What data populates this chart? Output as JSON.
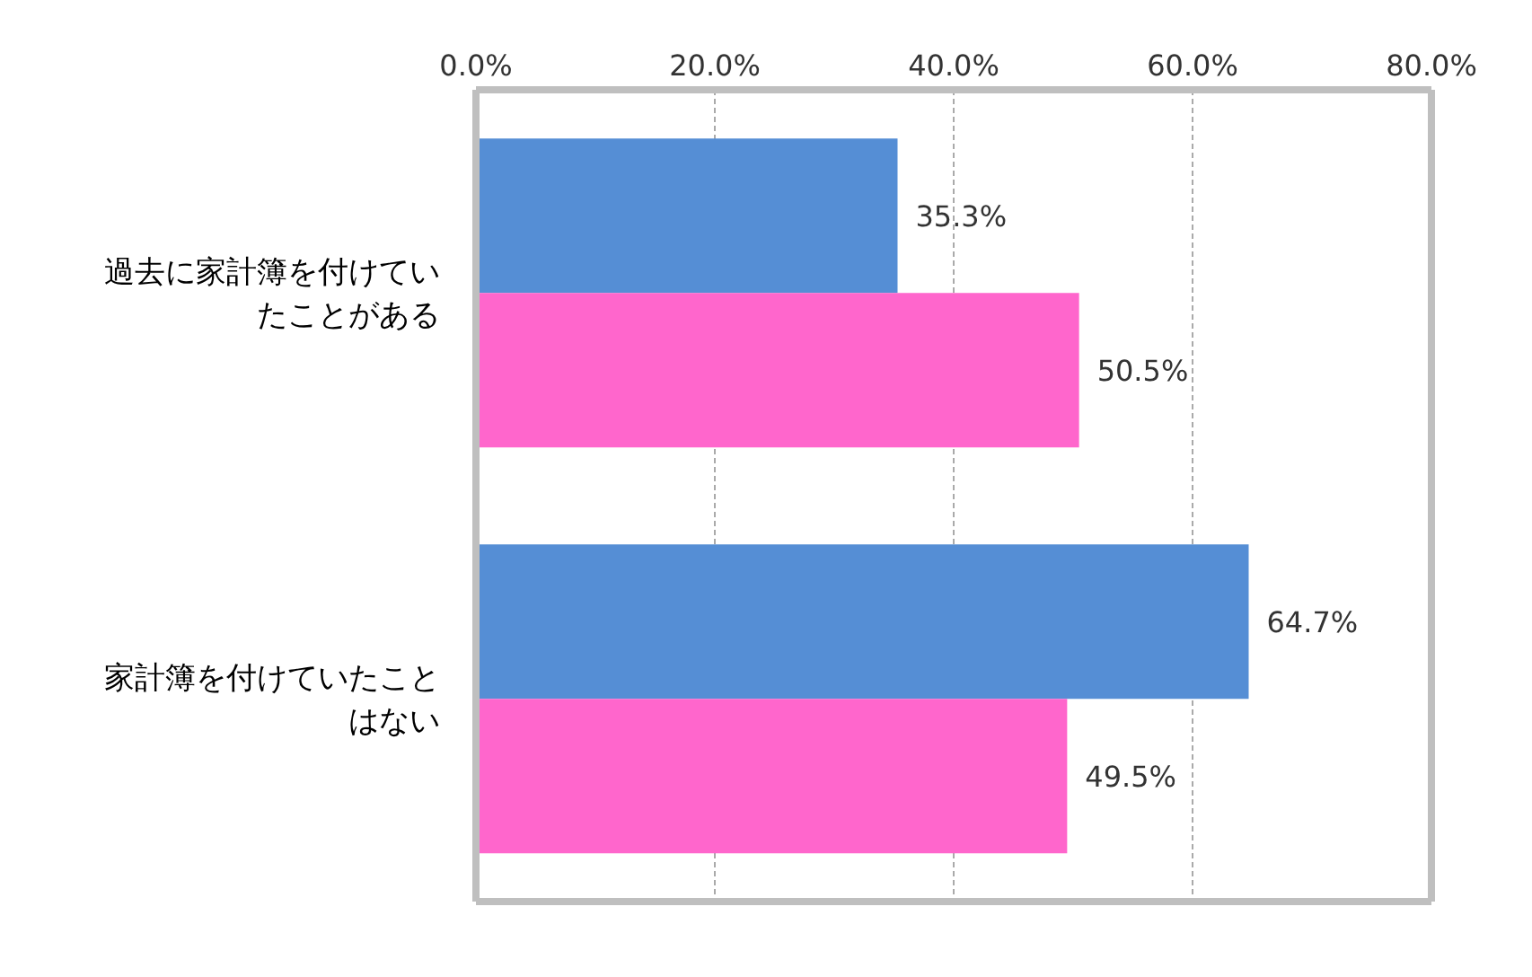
{
  "chart_data": {
    "type": "bar",
    "orientation": "horizontal",
    "categories": [
      "過去に家計簿を付けていたことがある",
      "家計簿を付けていたことはない"
    ],
    "series": [
      {
        "color": "#558ed5",
        "values": [
          35.3,
          64.7
        ],
        "value_labels": [
          "35.3%",
          "64.7%"
        ]
      },
      {
        "color": "#ff66cc",
        "values": [
          50.5,
          49.5
        ],
        "value_labels": [
          "50.5%",
          "49.5%"
        ]
      }
    ],
    "xlim": [
      0,
      80
    ],
    "xticks": [
      {
        "value": 0,
        "label": "0.0%"
      },
      {
        "value": 20,
        "label": "20.0%"
      },
      {
        "value": 40,
        "label": "40.0%"
      },
      {
        "value": 60,
        "label": "60.0%"
      },
      {
        "value": 80,
        "label": "80.0%"
      }
    ],
    "grid": "x"
  }
}
